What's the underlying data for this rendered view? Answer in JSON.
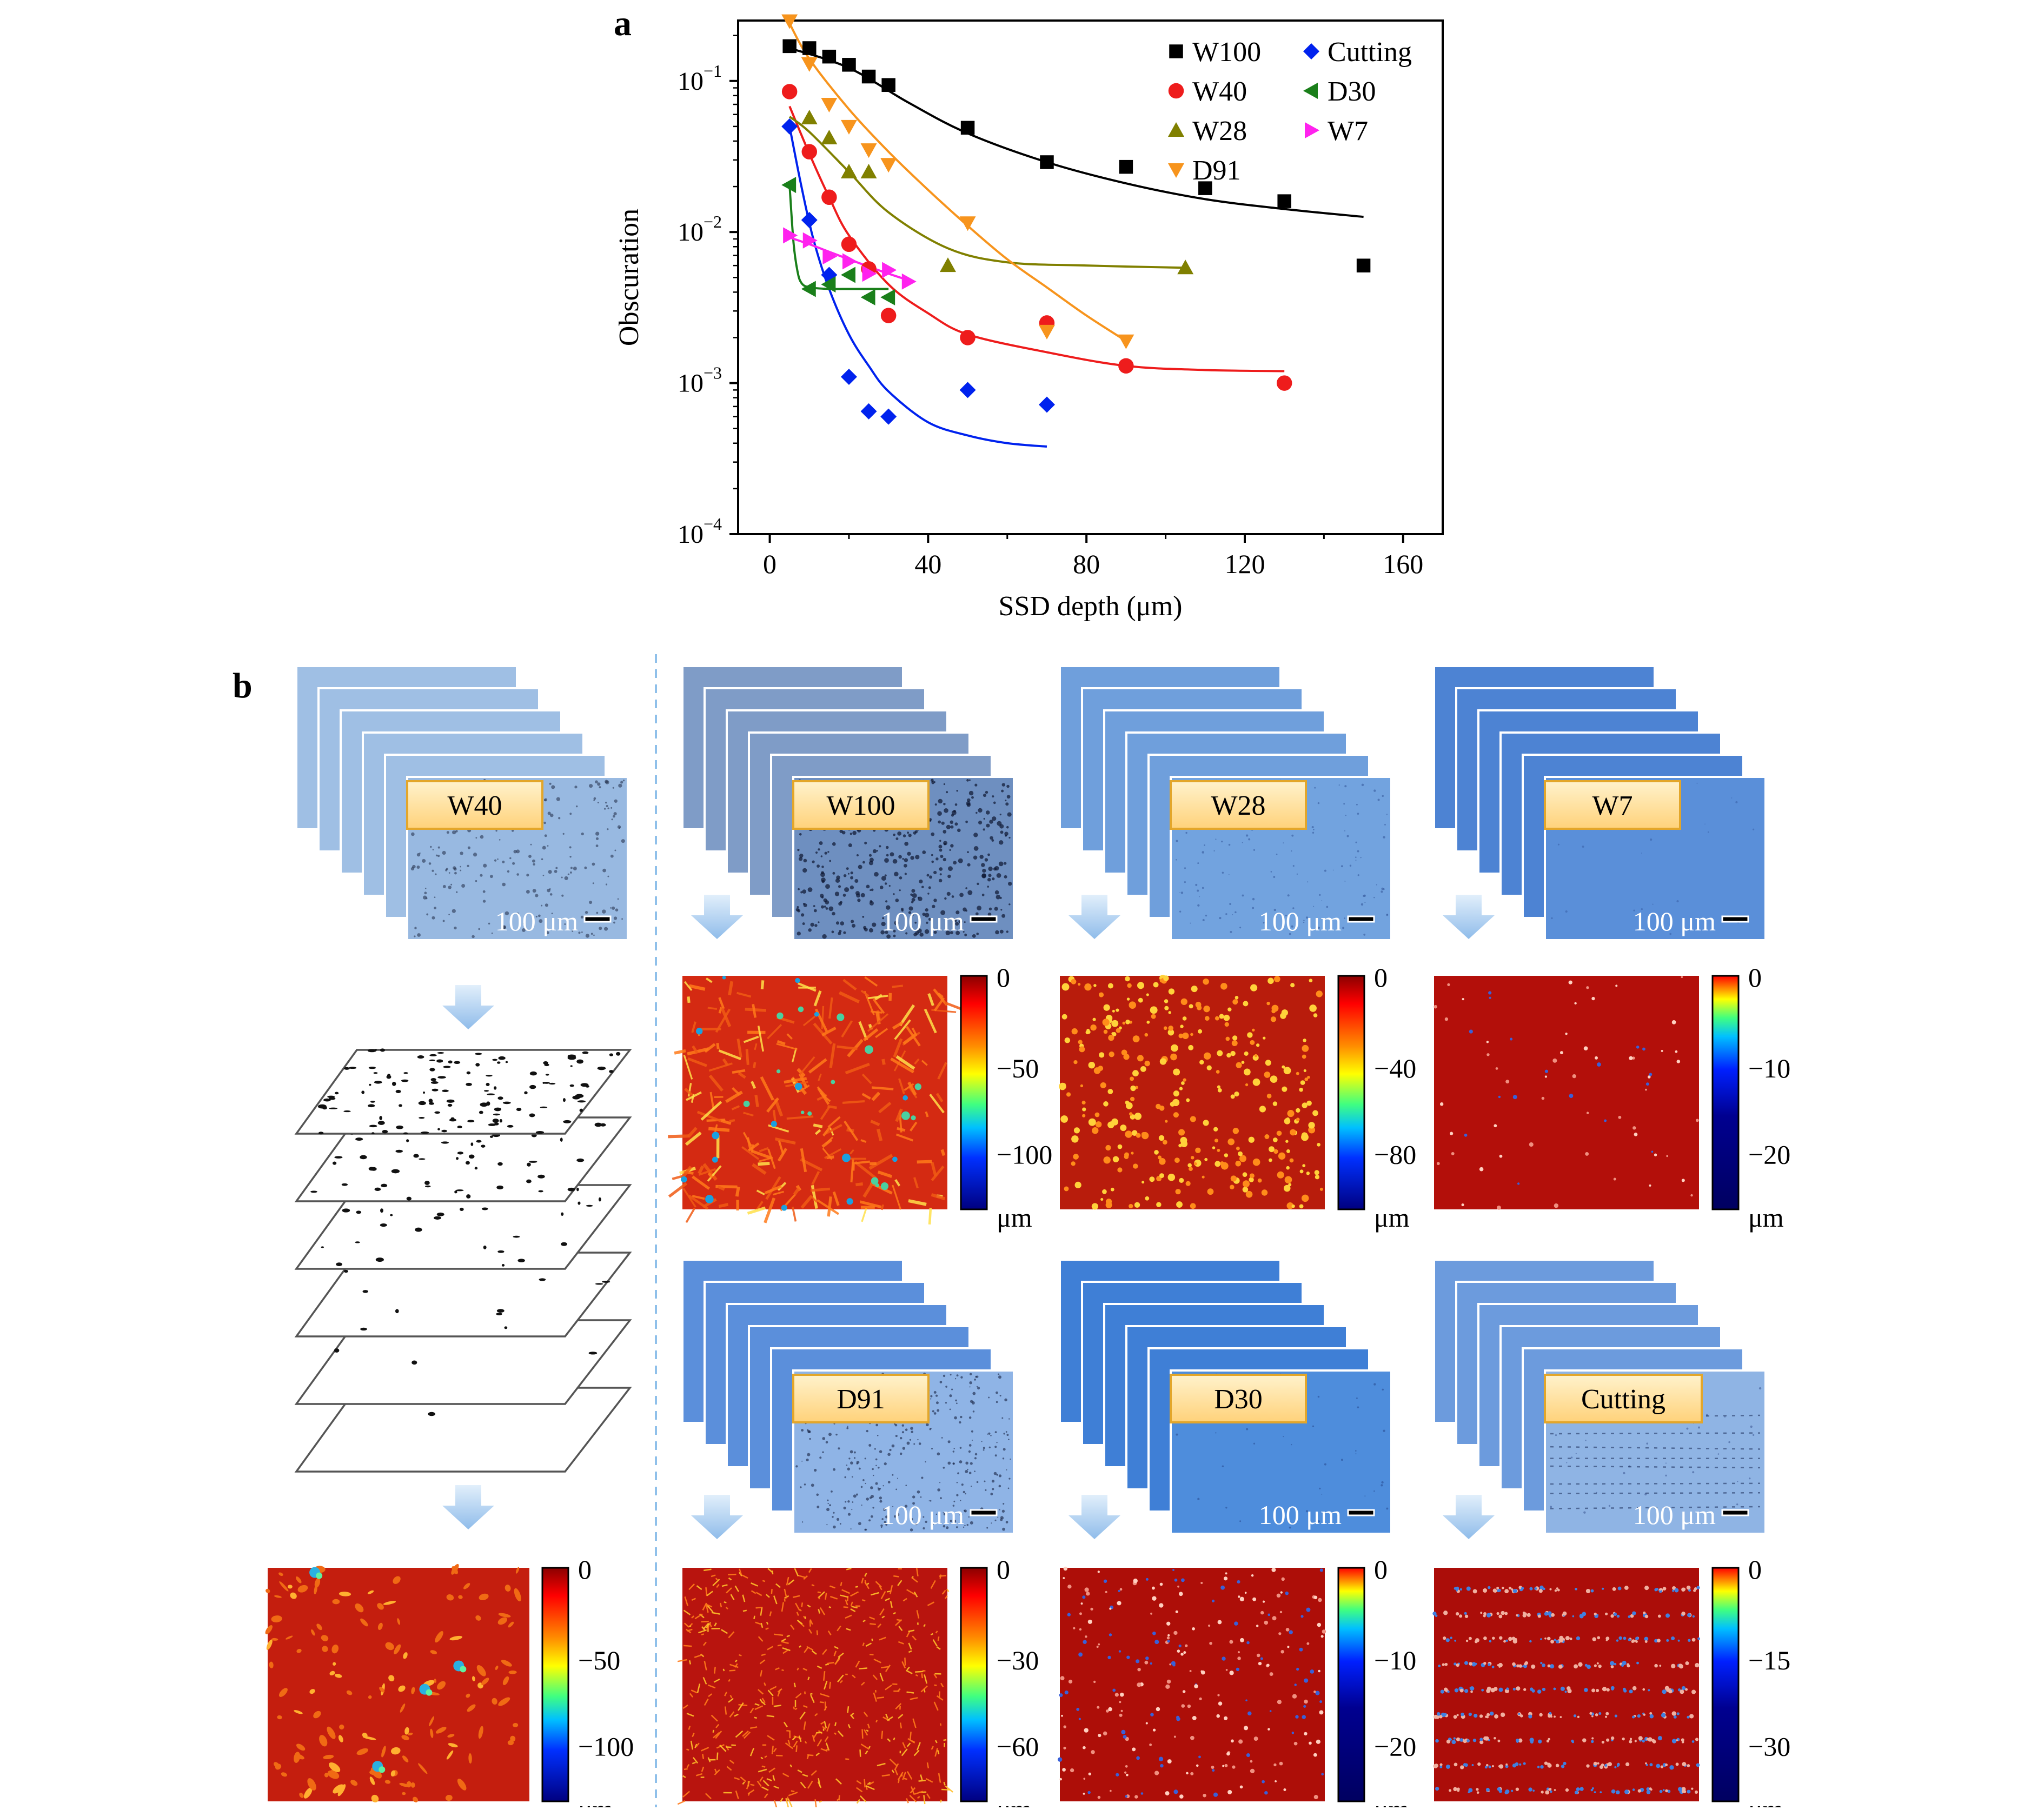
{
  "panel_a": {
    "letter": "a",
    "chart_data": {
      "type": "scatter",
      "xlabel": "SSD depth (μm)",
      "ylabel": "Obscuration",
      "xlim": [
        -8,
        170
      ],
      "ylim_exp": [
        -4,
        -0.6
      ],
      "y_scale": "log",
      "x_ticks": [
        "0",
        "40",
        "80",
        "120",
        "160"
      ],
      "y_ticks": [
        {
          "base": "10",
          "exp": "−1",
          "value": 0.1
        },
        {
          "base": "10",
          "exp": "−2",
          "value": 0.01
        },
        {
          "base": "10",
          "exp": "−3",
          "value": 0.001
        },
        {
          "base": "10",
          "exp": "−4",
          "value": 0.0001
        }
      ],
      "legend_position": "top-right",
      "series": [
        {
          "name": "W100",
          "color": "#000000",
          "marker": "square",
          "x": [
            5,
            10,
            15,
            20,
            25,
            30,
            50,
            70,
            90,
            110,
            130,
            150
          ],
          "y": [
            0.17,
            0.165,
            0.145,
            0.128,
            0.107,
            0.094,
            0.049,
            0.029,
            0.027,
            0.0195,
            0.016,
            0.006
          ],
          "fit": {
            "x": [
              5,
              20,
              35,
              50,
              70,
              90,
              110,
              130,
              150
            ],
            "y": [
              0.165,
              0.122,
              0.072,
              0.045,
              0.029,
              0.021,
              0.0165,
              0.0142,
              0.0126
            ]
          }
        },
        {
          "name": "W40",
          "color": "#ee1c1c",
          "marker": "circle",
          "x": [
            5,
            10,
            15,
            20,
            25,
            30,
            50,
            70,
            90,
            130
          ],
          "y": [
            0.085,
            0.034,
            0.017,
            0.0083,
            0.0057,
            0.0028,
            0.002,
            0.0025,
            0.0013,
            0.001
          ],
          "fit": {
            "x": [
              5,
              10,
              15,
              20,
              30,
              40,
              50,
              70,
              90,
              110,
              130
            ],
            "y": [
              0.068,
              0.033,
              0.017,
              0.0095,
              0.0045,
              0.0029,
              0.0021,
              0.0016,
              0.0013,
              0.00122,
              0.0012
            ]
          }
        },
        {
          "name": "W28",
          "color": "#808000",
          "marker": "triangle-up",
          "x": [
            10,
            15,
            20,
            25,
            45,
            105
          ],
          "y": [
            0.057,
            0.042,
            0.025,
            0.025,
            0.006,
            0.0058
          ],
          "fit": {
            "x": [
              5,
              10,
              20,
              30,
              45,
              60,
              80,
              105
            ],
            "y": [
              0.058,
              0.046,
              0.025,
              0.0135,
              0.0078,
              0.0063,
              0.006,
              0.0058
            ]
          }
        },
        {
          "name": "D91",
          "color": "#f7941d",
          "marker": "triangle-down",
          "x": [
            5,
            10,
            15,
            20,
            25,
            30,
            50,
            70,
            90
          ],
          "y": [
            0.25,
            0.13,
            0.07,
            0.05,
            0.035,
            0.028,
            0.0115,
            0.0022,
            0.0019
          ],
          "fit": {
            "x": [
              5,
              10,
              20,
              30,
              40,
              50,
              60,
              70,
              80,
              90
            ],
            "y": [
              0.24,
              0.14,
              0.065,
              0.034,
              0.019,
              0.011,
              0.0066,
              0.0043,
              0.0028,
              0.0019
            ]
          }
        },
        {
          "name": "Cutting",
          "color": "#0022ee",
          "marker": "diamond",
          "x": [
            5,
            10,
            15,
            20,
            25,
            30,
            50,
            70
          ],
          "y": [
            0.05,
            0.012,
            0.0052,
            0.0011,
            0.00065,
            0.0006,
            0.0009,
            0.00072
          ],
          "fit": {
            "x": [
              5,
              8,
              11,
              15,
              20,
              25,
              30,
              40,
              50,
              60,
              70
            ],
            "y": [
              0.05,
              0.02,
              0.009,
              0.0042,
              0.0021,
              0.0013,
              0.00088,
              0.00055,
              0.00045,
              0.0004,
              0.00038
            ]
          }
        },
        {
          "name": "D30",
          "color": "#1a7f1a",
          "marker": "triangle-left",
          "x": [
            5,
            10,
            15,
            20,
            25,
            30
          ],
          "y": [
            0.0205,
            0.0042,
            0.0045,
            0.0052,
            0.0037,
            0.0037
          ],
          "fit": {
            "x": [
              5,
              6,
              7,
              8,
              10,
              15,
              20,
              25,
              30
            ],
            "y": [
              0.0205,
              0.0085,
              0.0055,
              0.0046,
              0.0043,
              0.0042,
              0.0042,
              0.0042,
              0.0042
            ]
          }
        },
        {
          "name": "W7",
          "color": "#ff22ee",
          "marker": "triangle-right",
          "x": [
            5,
            10,
            15,
            20,
            25,
            30,
            35
          ],
          "y": [
            0.0095,
            0.0088,
            0.0069,
            0.0064,
            0.0053,
            0.0056,
            0.0047
          ],
          "fit": {
            "x": [
              5,
              10,
              15,
              20,
              25,
              30,
              35
            ],
            "y": [
              0.0092,
              0.0083,
              0.0074,
              0.0066,
              0.0059,
              0.0053,
              0.0048
            ]
          }
        }
      ]
    }
  },
  "panel_b": {
    "letter": "b",
    "scale_text": "100 μm",
    "unit": "μm",
    "samples": [
      {
        "label": "W40",
        "colorbar_ticks": [
          "0",
          "−50",
          "−100"
        ],
        "style": "w40"
      },
      {
        "label": "W100",
        "colorbar_ticks": [
          "0",
          "−50",
          "−100"
        ],
        "style": "w100"
      },
      {
        "label": "W28",
        "colorbar_ticks": [
          "0",
          "−40",
          "−80"
        ],
        "style": "w28"
      },
      {
        "label": "W7",
        "colorbar_ticks": [
          "0",
          "−10",
          "−20"
        ],
        "style": "w7"
      },
      {
        "label": "D91",
        "colorbar_ticks": [
          "0",
          "−30",
          "−60"
        ],
        "style": "d91"
      },
      {
        "label": "D30",
        "colorbar_ticks": [
          "0",
          "−10",
          "−20"
        ],
        "style": "d30"
      },
      {
        "label": "Cutting",
        "colorbar_ticks": [
          "0",
          "−15",
          "−30"
        ],
        "style": "cut"
      }
    ]
  }
}
